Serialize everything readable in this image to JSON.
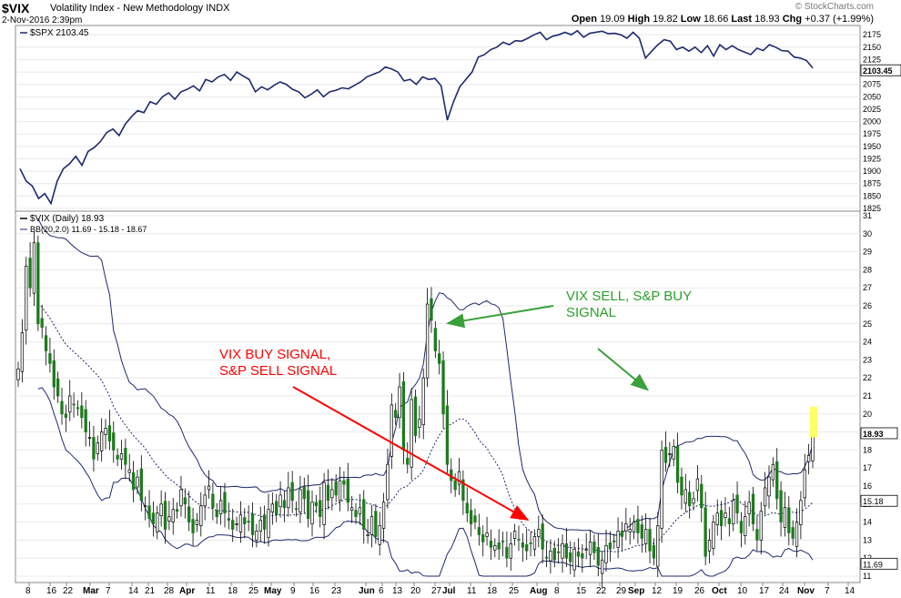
{
  "header": {
    "symbol": "$VIX",
    "name": "Volatility Index - New Methodology INDX",
    "date": "2-Nov-2016 2:39pm",
    "brand": "© StockCharts.com",
    "open": "19.09",
    "high": "19.82",
    "low": "18.66",
    "last": "18.93",
    "chg": "+0.37 (+1.99%)"
  },
  "annotations": {
    "red_line1": "VIX BUY SIGNAL,",
    "red_line2": "S&P SELL SIGNAL",
    "green_line1": "VIX SELL, S&P BUY",
    "green_line2": "SIGNAL"
  },
  "colors": {
    "spx_line": "#1f2a6e",
    "bands": "#1f2a6e",
    "up": "#ffffff",
    "down": "#1e7a1e",
    "red_arrow": "#ff0000",
    "green_arrow": "#3aa03a",
    "last_highlight": "#ffff66"
  },
  "chart_data": [
    {
      "type": "line",
      "legend": "$SPX 2103.45",
      "last_label": "2103.45",
      "ylim": [
        1825,
        2190
      ],
      "y_ticks": [
        1825,
        1850,
        1875,
        1900,
        1925,
        1950,
        1975,
        2000,
        2025,
        2050,
        2075,
        2100,
        2125,
        2150,
        2175
      ],
      "series": [
        {
          "name": "$SPX",
          "values": [
            1905,
            1880,
            1870,
            1845,
            1855,
            1835,
            1880,
            1905,
            1915,
            1930,
            1912,
            1940,
            1948,
            1960,
            1978,
            1985,
            1972,
            1995,
            2010,
            2022,
            2018,
            2040,
            2035,
            2050,
            2058,
            2045,
            2060,
            2065,
            2072,
            2062,
            2085,
            2080,
            2090,
            2095,
            2083,
            2100,
            2092,
            2085,
            2060,
            2070,
            2064,
            2073,
            2080,
            2075,
            2065,
            2060,
            2048,
            2055,
            2064,
            2050,
            2060,
            2063,
            2068,
            2066,
            2073,
            2080,
            2090,
            2095,
            2100,
            2110,
            2106,
            2100,
            2082,
            2085,
            2075,
            2090,
            2085,
            2087,
            2072,
            2003,
            2040,
            2070,
            2085,
            2100,
            2130,
            2135,
            2145,
            2150,
            2160,
            2155,
            2163,
            2162,
            2168,
            2175,
            2180,
            2165,
            2172,
            2175,
            2180,
            2175,
            2183,
            2170,
            2178,
            2180,
            2182,
            2177,
            2178,
            2175,
            2168,
            2180,
            2168,
            2128,
            2142,
            2155,
            2165,
            2162,
            2145,
            2150,
            2142,
            2150,
            2139,
            2153,
            2132,
            2155,
            2145,
            2153,
            2145,
            2140,
            2135,
            2148,
            2143,
            2155,
            2150,
            2143,
            2142,
            2130,
            2128,
            2123,
            2108
          ]
        }
      ]
    },
    {
      "type": "candlestick",
      "legend": "$VIX (Daily) 18.93",
      "bb_legend": "BB(20,2.0) 11.69 - 15.18 - 18.67",
      "last_labels": [
        "18.93",
        "15.18",
        "11.69"
      ],
      "ylim": [
        11,
        31
      ],
      "y_ticks": [
        11,
        12,
        13,
        14,
        15,
        16,
        17,
        18,
        19,
        20,
        21,
        22,
        23,
        24,
        25,
        26,
        27,
        28,
        29,
        30,
        31
      ],
      "x_ticks": [
        "8",
        "16",
        "22",
        "Mar",
        "7",
        "14",
        "21",
        "28",
        "Apr",
        "11",
        "18",
        "25",
        "May",
        "9",
        "16",
        "23",
        "Jun",
        "6",
        "13",
        "20",
        "27",
        "Jul",
        "11",
        "18",
        "25",
        "Aug",
        "8",
        "15",
        "22",
        "29",
        "Sep",
        "12",
        "19",
        "26",
        "Oct",
        "10",
        "17",
        "24",
        "Nov",
        "7",
        "14"
      ],
      "close": [
        22.5,
        24.5,
        28.2,
        27.0,
        29.5,
        25.0,
        24.8,
        23.5,
        22.8,
        21.5,
        21.0,
        20.0,
        19.8,
        21.0,
        20.5,
        20.3,
        19.8,
        19.0,
        18.7,
        17.5,
        18.4,
        19.0,
        19.2,
        18.5,
        18.0,
        17.5,
        17.8,
        17.2,
        16.9,
        15.8,
        16.5,
        15.2,
        14.9,
        14.2,
        13.9,
        14.5,
        15.0,
        13.6,
        14.3,
        14.7,
        14.6,
        15.8,
        15.0,
        14.0,
        13.4,
        14.1,
        14.9,
        15.5,
        16.0,
        14.8,
        14.3,
        15.2,
        14.5,
        14.1,
        13.6,
        13.9,
        14.4,
        13.9,
        14.0,
        13.3,
        13.5,
        14.1,
        13.6,
        14.7,
        15.0,
        14.4,
        15.5,
        14.8,
        15.9,
        15.2,
        14.7,
        15.8,
        15.3,
        14.2,
        15.1,
        14.9,
        14.3,
        16.2,
        15.2,
        15.8,
        15.5,
        16.3,
        16.1,
        15.1,
        14.8,
        14.3,
        14.8,
        13.6,
        13.3,
        14.3,
        13.2,
        13.8,
        15.1,
        17.2,
        20.5,
        19.8,
        21.5,
        18.0,
        17.2,
        20.8,
        18.8,
        19.7,
        22.0,
        26.1,
        25.2,
        23.5,
        22.8,
        20.0,
        17.2,
        16.3,
        15.8,
        16.8,
        15.2,
        14.5,
        13.9,
        14.0,
        13.3,
        12.9,
        13.4,
        12.6,
        12.7,
        12.5,
        12.9,
        12.0,
        12.8,
        13.5,
        13.0,
        12.6,
        12.4,
        12.8,
        13.2,
        13.6,
        12.5,
        12.0,
        12.4,
        11.9,
        12.3,
        12.8,
        12.0,
        11.8,
        12.5,
        12.1,
        12.0,
        12.5,
        12.9,
        12.3,
        11.6,
        11.9,
        12.7,
        12.5,
        12.9,
        13.5,
        13.2,
        13.9,
        13.6,
        14.0,
        13.4,
        13.1,
        13.6,
        12.4,
        12.0,
        13.8,
        18.0,
        17.3,
        17.8,
        18.2,
        16.2,
        15.5,
        15.8,
        14.9,
        15.3,
        16.4,
        14.8,
        12.1,
        13.0,
        14.0,
        14.5,
        13.8,
        14.5,
        13.9,
        15.2,
        14.5,
        13.4,
        14.3,
        15.1,
        13.9,
        13.0,
        14.6,
        15.9,
        16.5,
        17.2,
        15.3,
        14.0,
        14.8,
        13.4,
        13.1,
        14.0,
        15.2,
        16.9,
        17.7,
        18.9
      ],
      "note": "one value per trading day (closing level), Feb-Nov 2016"
    }
  ]
}
